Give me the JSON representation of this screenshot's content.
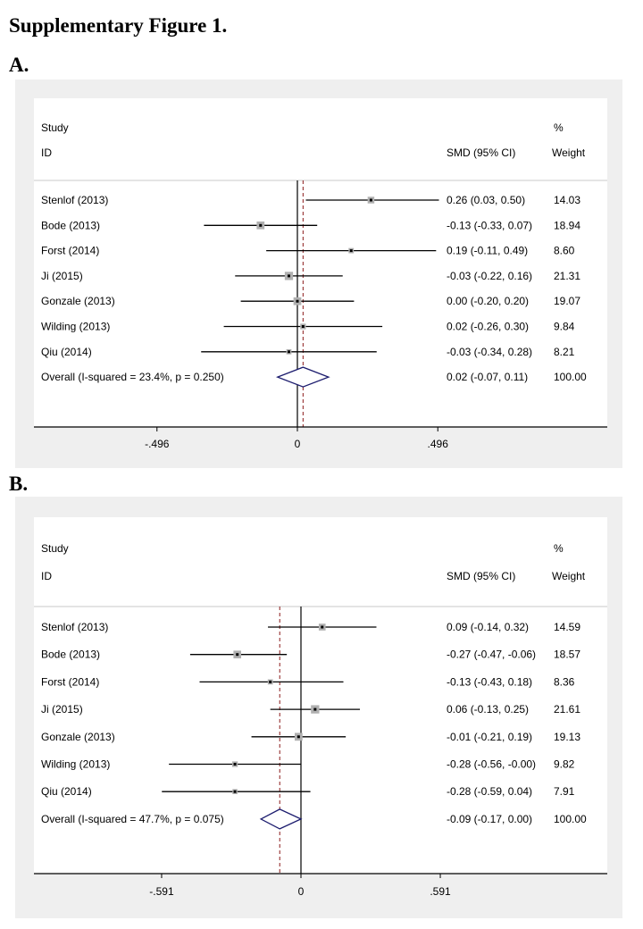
{
  "figure_title": "Supplementary Figure 1.",
  "chart_data": [
    {
      "type": "forest",
      "panel_label": "A.",
      "header": {
        "study": "Study",
        "id": "ID",
        "effect": "SMD (95% CI)",
        "pct": "%",
        "weight": "Weight"
      },
      "studies": [
        {
          "id": "Stenlof (2013)",
          "smd": 0.26,
          "lo": 0.03,
          "hi": 0.5,
          "ci_text": "0.26 (0.03, 0.50)",
          "weight": "14.03"
        },
        {
          "id": "Bode (2013)",
          "smd": -0.13,
          "lo": -0.33,
          "hi": 0.07,
          "ci_text": "-0.13 (-0.33, 0.07)",
          "weight": "18.94"
        },
        {
          "id": "Forst (2014)",
          "smd": 0.19,
          "lo": -0.11,
          "hi": 0.49,
          "ci_text": "0.19 (-0.11, 0.49)",
          "weight": "8.60"
        },
        {
          "id": "Ji (2015)",
          "smd": -0.03,
          "lo": -0.22,
          "hi": 0.16,
          "ci_text": "-0.03 (-0.22, 0.16)",
          "weight": "21.31"
        },
        {
          "id": "Gonzale (2013)",
          "smd": 0.0,
          "lo": -0.2,
          "hi": 0.2,
          "ci_text": "0.00 (-0.20, 0.20)",
          "weight": "19.07"
        },
        {
          "id": "Wilding (2013)",
          "smd": 0.02,
          "lo": -0.26,
          "hi": 0.3,
          "ci_text": "0.02 (-0.26, 0.30)",
          "weight": "9.84"
        },
        {
          "id": "Qiu (2014)",
          "smd": -0.03,
          "lo": -0.34,
          "hi": 0.28,
          "ci_text": "-0.03 (-0.34, 0.28)",
          "weight": "8.21"
        }
      ],
      "overall": {
        "label": "Overall  (I-squared = 23.4%, p = 0.250)",
        "smd": 0.02,
        "lo": -0.07,
        "hi": 0.11,
        "ci_text": "0.02 (-0.07, 0.11)",
        "weight": "100.00"
      },
      "xticks": [
        {
          "value": -0.496,
          "label": "-.496"
        },
        {
          "value": 0,
          "label": "0"
        },
        {
          "value": 0.496,
          "label": ".496"
        }
      ],
      "colors": {
        "diamond": "#1c1c6e",
        "overall_line": "#8b1a1a",
        "square": "#b0b0b0",
        "panel_bg": "#efefef"
      }
    },
    {
      "type": "forest",
      "panel_label": "B.",
      "header": {
        "study": "Study",
        "id": "ID",
        "effect": "SMD (95% CI)",
        "pct": "%",
        "weight": "Weight"
      },
      "studies": [
        {
          "id": "Stenlof (2013)",
          "smd": 0.09,
          "lo": -0.14,
          "hi": 0.32,
          "ci_text": "0.09 (-0.14, 0.32)",
          "weight": "14.59"
        },
        {
          "id": "Bode (2013)",
          "smd": -0.27,
          "lo": -0.47,
          "hi": -0.06,
          "ci_text": "-0.27 (-0.47, -0.06)",
          "weight": "18.57"
        },
        {
          "id": "Forst (2014)",
          "smd": -0.13,
          "lo": -0.43,
          "hi": 0.18,
          "ci_text": "-0.13 (-0.43, 0.18)",
          "weight": "8.36"
        },
        {
          "id": "Ji (2015)",
          "smd": 0.06,
          "lo": -0.13,
          "hi": 0.25,
          "ci_text": "0.06 (-0.13, 0.25)",
          "weight": "21.61"
        },
        {
          "id": "Gonzale (2013)",
          "smd": -0.01,
          "lo": -0.21,
          "hi": 0.19,
          "ci_text": "-0.01 (-0.21, 0.19)",
          "weight": "19.13"
        },
        {
          "id": "Wilding (2013)",
          "smd": -0.28,
          "lo": -0.56,
          "hi": -0.0,
          "ci_text": "-0.28 (-0.56, -0.00)",
          "weight": "9.82"
        },
        {
          "id": "Qiu (2014)",
          "smd": -0.28,
          "lo": -0.59,
          "hi": 0.04,
          "ci_text": "-0.28 (-0.59, 0.04)",
          "weight": "7.91"
        }
      ],
      "overall": {
        "label": "Overall  (I-squared = 47.7%, p = 0.075)",
        "smd": -0.09,
        "lo": -0.17,
        "hi": 0.0,
        "ci_text": "-0.09 (-0.17, 0.00)",
        "weight": "100.00"
      },
      "xticks": [
        {
          "value": -0.591,
          "label": "-.591"
        },
        {
          "value": 0,
          "label": "0"
        },
        {
          "value": 0.591,
          "label": ".591"
        }
      ],
      "colors": {
        "diamond": "#1c1c6e",
        "overall_line": "#8b1a1a",
        "square": "#b0b0b0",
        "panel_bg": "#efefef"
      }
    }
  ]
}
